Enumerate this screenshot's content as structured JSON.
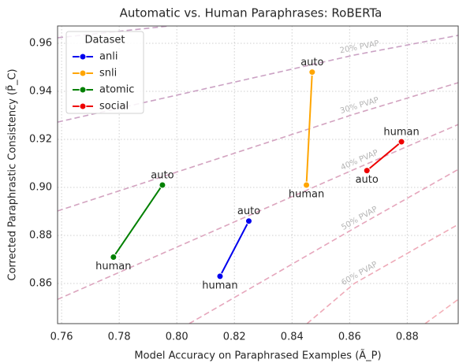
{
  "chart_data": {
    "type": "line",
    "title": "Automatic vs. Human Paraphrases: RoBERTa",
    "xlabel": "Model Accuracy on Paraphrased Examples (Ã_P)",
    "ylabel": "Corrected Paraphrastic Consistency (P̃_C)",
    "xlim": [
      0.7586,
      0.8977
    ],
    "ylim": [
      0.8433,
      0.9672
    ],
    "xticks": [
      {
        "value": 0.76,
        "label": "0.76"
      },
      {
        "value": 0.78,
        "label": "0.78"
      },
      {
        "value": 0.8,
        "label": "0.80"
      },
      {
        "value": 0.82,
        "label": "0.82"
      },
      {
        "value": 0.84,
        "label": "0.84"
      },
      {
        "value": 0.86,
        "label": "0.86"
      },
      {
        "value": 0.88,
        "label": "0.88"
      }
    ],
    "yticks": [
      {
        "value": 0.86,
        "label": "0.86"
      },
      {
        "value": 0.88,
        "label": "0.88"
      },
      {
        "value": 0.9,
        "label": "0.90"
      },
      {
        "value": 0.92,
        "label": "0.92"
      },
      {
        "value": 0.94,
        "label": "0.94"
      },
      {
        "value": 0.96,
        "label": "0.96"
      }
    ],
    "grid": true,
    "legend": {
      "title": "Dataset",
      "position": "upper left"
    },
    "series": [
      {
        "name": "anli",
        "color": "#0000ee",
        "x": [
          0.825,
          0.815
        ],
        "values": [
          0.886,
          0.863
        ],
        "point_labels": [
          "auto",
          "human"
        ]
      },
      {
        "name": "snli",
        "color": "#ffa500",
        "x": [
          0.847,
          0.845
        ],
        "values": [
          0.948,
          0.901
        ],
        "point_labels": [
          "auto",
          "human"
        ]
      },
      {
        "name": "atomic",
        "color": "#008000",
        "x": [
          0.795,
          0.778
        ],
        "values": [
          0.901,
          0.871
        ],
        "point_labels": [
          "auto",
          "human"
        ]
      },
      {
        "name": "social",
        "color": "#ee0000",
        "x": [
          0.878,
          0.866
        ],
        "values": [
          0.919,
          0.907
        ],
        "point_labels": [
          "human",
          "auto"
        ]
      }
    ],
    "contours": [
      {
        "color": "#c9a3c6",
        "x": [
          0.7586,
          0.7974
        ],
        "values": [
          0.9623,
          0.9672
        ]
      },
      {
        "label": "20% PVAP",
        "color": "#cba2c4",
        "x": [
          0.7586,
          0.8616,
          0.8977
        ],
        "values": [
          0.9272,
          0.9551,
          0.9633
        ]
      },
      {
        "label": "30% PVAP",
        "color": "#d3a3c0",
        "x": [
          0.7586,
          0.8616,
          0.8977
        ],
        "values": [
          0.8902,
          0.9305,
          0.9436
        ]
      },
      {
        "label": "40% PVAP",
        "color": "#dca5be",
        "x": [
          0.7586,
          0.8616,
          0.8977
        ],
        "values": [
          0.8534,
          0.9075,
          0.9262
        ]
      },
      {
        "label": "50% PVAP",
        "color": "#e6a6bc",
        "x": [
          0.8043,
          0.8616,
          0.8977
        ],
        "values": [
          0.8433,
          0.883,
          0.9075
        ]
      },
      {
        "label": "60% PVAP",
        "color": "#eeaab8",
        "x": [
          0.8452,
          0.8616,
          0.8977
        ],
        "values": [
          0.8433,
          0.86,
          0.8846
        ]
      },
      {
        "color": "#f4b0b8",
        "x": [
          0.8862,
          0.8977
        ],
        "values": [
          0.8433,
          0.8534
        ]
      }
    ]
  }
}
